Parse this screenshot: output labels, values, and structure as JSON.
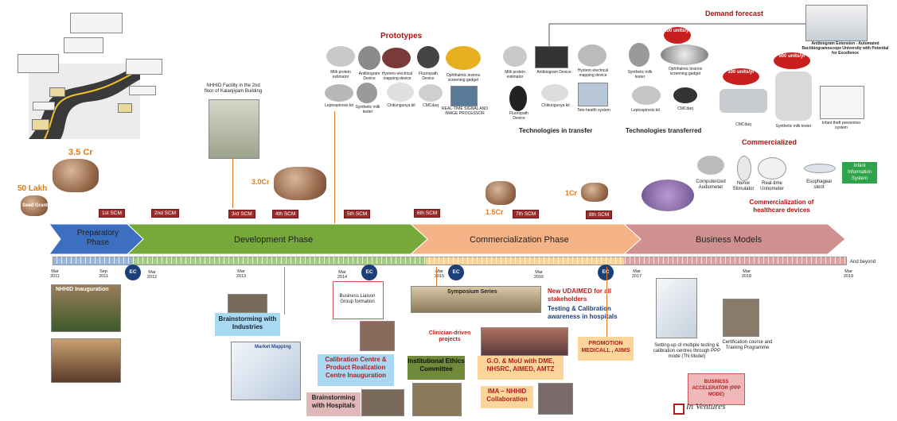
{
  "headings": {
    "demand_forecast": "Demand forecast",
    "prototypes": "Prototypes",
    "technologies_in_transfer": "Technologies in transfer",
    "technologies_transferred": "Technologies transferred",
    "commercialized": "Commercialized",
    "commercialization_devices": "Commercialization of healthcare devices"
  },
  "funding": {
    "f50": "50 Lakh",
    "seed": "Seed Grant",
    "f35": "3.5 Cr",
    "f30": "3.0Cr",
    "f15": "1.5Cr",
    "f1": "1Cr"
  },
  "scm": [
    "1st SCM",
    "2nd SCM",
    "3rd SCM",
    "4th SCM",
    "5th SCM",
    "6th SCM",
    "7th SCM",
    "8th SCM"
  ],
  "phases": [
    "Preparatory Phase",
    "Development Phase",
    "Commercialization Phase",
    "Business Models"
  ],
  "years": [
    "Mar 2011",
    "Sep 2011",
    "Mar 2012",
    "Mar 2013",
    "Mar 2014",
    "Mar 2015",
    "Mar 2016",
    "Mar 2017",
    "Mar 2018",
    "Mar 2019"
  ],
  "and_beyond": "And beyond",
  "ec": "EC",
  "nhhid_facility": "NHHID Facility in the 2nd floor of Kalanjiyam Building",
  "prototype_items": [
    "Milk protein estimator",
    "Antibiogram Device",
    "Hystero electrical mapping device",
    "Fluoropath Device",
    "Ophthalmic lesions screening gadget",
    "Leptospirosis kit",
    "Synthetic milk tester",
    "Chikungunya kit",
    "CMCdaq",
    "REAL-TIME SIGNAL AND IMAGE PROCESSOR"
  ],
  "transfer_items": [
    "Milk protein estimator",
    "Antibiogram Device",
    "Hystero electrical mapping device",
    "Fluoropath Device",
    "Chikungunya kit",
    "Tele-health system"
  ],
  "transferred_items": [
    "Synthetic milk tester",
    "Ophthalmic lesions screening gadget",
    "Leptospirosis kit",
    "CMCdaq"
  ],
  "commercialized_items": [
    "CMCdaq",
    "Synthetic milk tester",
    "Infant theft prevention system"
  ],
  "antibiogram_ext": "Antibiogram Extension - Automated Bactibiogramoscope University with Potential for Excellence",
  "units1": "100 units/yr",
  "units2": "100 units/yr",
  "units3": "500 units/yr",
  "healthcare_devices": [
    "Computerized Audiometer",
    "Nerve Stimulator",
    "Real-time Urinometer",
    "Esophageal stent"
  ],
  "infant_info": "Infant Information System",
  "events": {
    "inauguration": "NHHID Inauguration",
    "brainstorm_industries": "Brainstorming with Industries",
    "market_mapping": "Market Mapping",
    "business_liaison": "Business Liaison Group formation",
    "calibration_centre": "Calibration Centre & Product Realization Centre Inauguration",
    "brainstorm_hospitals": "Brainstorming with Hospitals",
    "ethics": "Institutional Ethics Committee",
    "symposium": "Symposium Series",
    "clinician": "Clinician-driven projects",
    "go_mou": "G.O. & MoU with DME, NHSRC, AIMED, AMTZ",
    "ima": "IMA – NHHID Collaboration",
    "udaimed": "New UDAIMED for all stakeholders",
    "testing": "Testing & Calibration awareness in hospitals",
    "promotion": "PROMOTION MEDICALL , AIIMS",
    "ppp": "Setting-up of multiple testing & calibration centres through PPP mode (TN Model)",
    "certification": "Certification course and Training Programme",
    "accelerator": "BUSINESS ACCELERATOR (PPP MODE)",
    "inventures": "In Ventures"
  },
  "colors": {
    "prep": "#3d6fc0",
    "dev": "#72a536",
    "comm": "#f4b183",
    "biz": "#d08a8a",
    "scm": "#9b2b2b",
    "ec": "#1c3f78"
  }
}
